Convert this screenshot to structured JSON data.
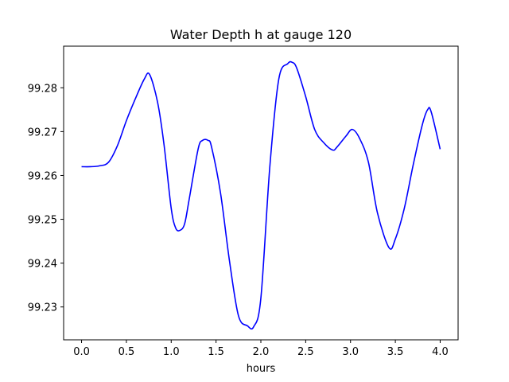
{
  "chart_data": {
    "type": "line",
    "title": "Water Depth h at gauge 120",
    "xlabel": "hours",
    "ylabel": "",
    "xlim": [
      -0.2,
      4.2
    ],
    "ylim": [
      99.2225,
      99.2895
    ],
    "xticks": [
      0.0,
      0.5,
      1.0,
      1.5,
      2.0,
      2.5,
      3.0,
      3.5,
      4.0
    ],
    "xtick_labels": [
      "0.0",
      "0.5",
      "1.0",
      "1.5",
      "2.0",
      "2.5",
      "3.0",
      "3.5",
      "4.0"
    ],
    "yticks": [
      99.23,
      99.24,
      99.25,
      99.26,
      99.27,
      99.28
    ],
    "ytick_labels": [
      "99.23",
      "99.24",
      "99.25",
      "99.26",
      "99.27",
      "99.28"
    ],
    "grid": false,
    "series": [
      {
        "color": "#0000ff",
        "x": [
          0.0,
          0.1,
          0.2,
          0.3,
          0.4,
          0.5,
          0.6,
          0.7,
          0.76,
          0.85,
          0.92,
          1.0,
          1.05,
          1.1,
          1.15,
          1.2,
          1.3,
          1.35,
          1.41,
          1.45,
          1.55,
          1.65,
          1.75,
          1.85,
          1.92,
          2.0,
          2.1,
          2.2,
          2.3,
          2.35,
          2.4,
          2.5,
          2.6,
          2.7,
          2.8,
          2.85,
          2.95,
          3.02,
          3.1,
          3.2,
          3.3,
          3.43,
          3.5,
          3.6,
          3.7,
          3.8,
          3.86,
          3.9,
          4.0
        ],
        "y": [
          99.262,
          99.262,
          99.2622,
          99.263,
          99.2668,
          99.2725,
          99.2775,
          99.282,
          99.283,
          99.2765,
          99.267,
          99.2525,
          99.248,
          99.2475,
          99.249,
          99.2545,
          99.266,
          99.268,
          99.268,
          99.2665,
          99.256,
          99.2405,
          99.228,
          99.2257,
          99.2255,
          99.232,
          99.262,
          99.282,
          99.2855,
          99.2858,
          99.2845,
          99.278,
          99.2705,
          99.2675,
          99.2658,
          99.2665,
          99.269,
          99.2705,
          99.2685,
          99.263,
          99.2515,
          99.2435,
          99.2455,
          99.2525,
          99.2625,
          99.2715,
          99.275,
          99.2745,
          99.266
        ]
      }
    ]
  }
}
